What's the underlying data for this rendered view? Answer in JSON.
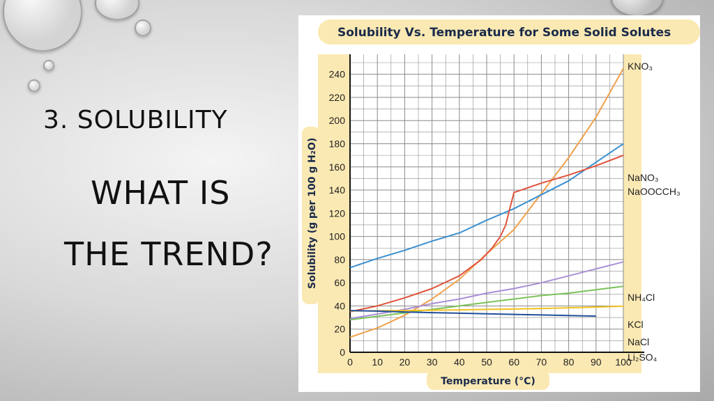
{
  "slide": {
    "heading": "3. SOLUBILITY",
    "question_line1": "WHAT IS",
    "question_line2": "THE TREND?"
  },
  "chart_data": {
    "type": "line",
    "title": "Solubility Vs. Temperature for Some Solid Solutes",
    "xlabel": "Temperature (°C)",
    "ylabel": "Solubility (g per 100 g H₂O)",
    "xlim": [
      0,
      100
    ],
    "ylim": [
      0,
      250
    ],
    "xticks": [
      0,
      10,
      20,
      30,
      40,
      50,
      60,
      70,
      80,
      90,
      100
    ],
    "yticks": [
      0,
      20,
      40,
      60,
      80,
      100,
      120,
      140,
      160,
      180,
      200,
      220,
      240
    ],
    "grid": true,
    "series": [
      {
        "name": "KNO₃",
        "color": "#f0a04b",
        "points": [
          [
            0,
            13
          ],
          [
            10,
            21
          ],
          [
            20,
            32
          ],
          [
            30,
            46
          ],
          [
            40,
            63
          ],
          [
            50,
            85
          ],
          [
            60,
            106
          ],
          [
            70,
            137
          ],
          [
            80,
            168
          ],
          [
            90,
            203
          ],
          [
            100,
            245
          ]
        ]
      },
      {
        "name": "NaNO₃",
        "color": "#3a8fd0",
        "points": [
          [
            0,
            73
          ],
          [
            10,
            81
          ],
          [
            20,
            88
          ],
          [
            30,
            96
          ],
          [
            40,
            103
          ],
          [
            50,
            114
          ],
          [
            60,
            124
          ],
          [
            70,
            136
          ],
          [
            80,
            148
          ],
          [
            90,
            164
          ],
          [
            100,
            180
          ]
        ]
      },
      {
        "name": "NaOOCCH₃",
        "color": "#e0533a",
        "points": [
          [
            0,
            35
          ],
          [
            10,
            40
          ],
          [
            20,
            47
          ],
          [
            30,
            55
          ],
          [
            40,
            66
          ],
          [
            48,
            80
          ],
          [
            52,
            90
          ],
          [
            55,
            100
          ],
          [
            57,
            110
          ],
          [
            58,
            120
          ],
          [
            60,
            138
          ],
          [
            70,
            146
          ],
          [
            80,
            153
          ],
          [
            90,
            161
          ],
          [
            100,
            170
          ]
        ]
      },
      {
        "name": "NH₄Cl",
        "color": "#a88fd6",
        "points": [
          [
            0,
            29
          ],
          [
            10,
            33
          ],
          [
            20,
            37
          ],
          [
            30,
            42
          ],
          [
            40,
            46
          ],
          [
            50,
            51
          ],
          [
            60,
            55
          ],
          [
            70,
            60
          ],
          [
            80,
            66
          ],
          [
            90,
            72
          ],
          [
            100,
            78
          ]
        ]
      },
      {
        "name": "KCl",
        "color": "#7cc25a",
        "points": [
          [
            0,
            28
          ],
          [
            10,
            31
          ],
          [
            20,
            34
          ],
          [
            30,
            37
          ],
          [
            40,
            40
          ],
          [
            50,
            43
          ],
          [
            60,
            46
          ],
          [
            70,
            49
          ],
          [
            80,
            51
          ],
          [
            90,
            54
          ],
          [
            100,
            57
          ]
        ]
      },
      {
        "name": "NaCl",
        "color": "#f2c020",
        "points": [
          [
            0,
            35.7
          ],
          [
            10,
            35.8
          ],
          [
            20,
            36
          ],
          [
            30,
            36.3
          ],
          [
            40,
            36.6
          ],
          [
            50,
            37
          ],
          [
            60,
            37.3
          ],
          [
            70,
            37.8
          ],
          [
            80,
            38.4
          ],
          [
            90,
            39
          ],
          [
            100,
            39.8
          ]
        ]
      },
      {
        "name": "Li₂SO₄",
        "color": "#1f4f9a",
        "points": [
          [
            0,
            36
          ],
          [
            10,
            35.5
          ],
          [
            20,
            34.8
          ],
          [
            30,
            34.2
          ],
          [
            40,
            33.7
          ],
          [
            50,
            33.2
          ],
          [
            60,
            32.7
          ],
          [
            70,
            32.2
          ],
          [
            80,
            31.7
          ],
          [
            90,
            31.2
          ]
        ]
      }
    ]
  }
}
